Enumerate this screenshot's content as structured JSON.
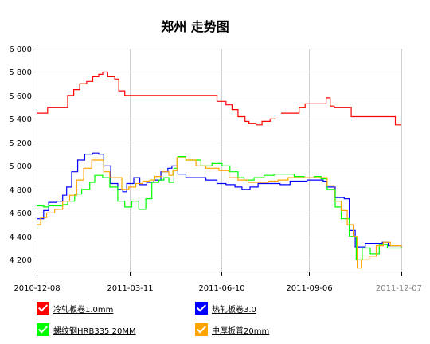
{
  "chart_data": {
    "type": "line",
    "title": "郑州 走势图",
    "ylim": [
      4100,
      6000
    ],
    "y_ticks": [
      "6 000",
      "5 800",
      "5 600",
      "5 400",
      "5 200",
      "5 000",
      "4 800",
      "4 600",
      "4 400",
      "4 200"
    ],
    "y_tick_values": [
      6000,
      5800,
      5600,
      5400,
      5200,
      5000,
      4800,
      4600,
      4400,
      4200
    ],
    "x_range": [
      "2010-12-08",
      "2011-12-07"
    ],
    "x_ticks": [
      "2010-12-08",
      "2011-03-11",
      "2011-06-10",
      "2011-09-06",
      "2011-12-07"
    ],
    "grid": true,
    "legend_placement": "bottom",
    "series": [
      {
        "name": "冷轧板卷1.0mm",
        "color": "#ff0000",
        "points": [
          [
            "2010-12-08",
            5450
          ],
          [
            "2010-12-13",
            5450
          ],
          [
            "2010-12-19",
            5500
          ],
          [
            "2010-12-31",
            5500
          ],
          [
            "2011-01-08",
            5600
          ],
          [
            "2011-01-14",
            5650
          ],
          [
            "2011-01-20",
            5700
          ],
          [
            "2011-01-27",
            5720
          ],
          [
            "2011-02-02",
            5760
          ],
          [
            "2011-02-08",
            5780
          ],
          [
            "2011-02-12",
            5800
          ],
          [
            "2011-02-17",
            5760
          ],
          [
            "2011-02-24",
            5740
          ],
          [
            "2011-02-28",
            5640
          ],
          [
            "2011-03-06",
            5600
          ],
          [
            "2011-06-01",
            5600
          ],
          [
            "2011-06-06",
            5550
          ],
          [
            "2011-06-15",
            5520
          ],
          [
            "2011-06-21",
            5480
          ],
          [
            "2011-06-27",
            5420
          ],
          [
            "2011-07-04",
            5380
          ],
          [
            "2011-07-08",
            5360
          ],
          [
            "2011-07-15",
            5350
          ],
          [
            "2011-07-21",
            5380
          ],
          [
            "2011-07-29",
            5400
          ],
          [
            "2011-08-03",
            5400
          ],
          null,
          [
            "2011-08-09",
            5450
          ],
          [
            "2011-08-21",
            5450
          ],
          [
            "2011-08-27",
            5500
          ],
          [
            "2011-09-02",
            5530
          ],
          [
            "2011-09-20",
            5530
          ],
          [
            "2011-09-23",
            5580
          ],
          [
            "2011-09-27",
            5510
          ],
          [
            "2011-10-01",
            5500
          ],
          [
            "2011-10-15",
            5500
          ],
          [
            "2011-10-18",
            5420
          ],
          [
            "2011-11-27",
            5420
          ],
          [
            "2011-12-01",
            5350
          ],
          [
            "2011-12-07",
            5350
          ]
        ]
      },
      {
        "name": "热轧板卷3.0",
        "color": "#0000ff",
        "points": [
          [
            "2010-12-08",
            4550
          ],
          [
            "2010-12-15",
            4620
          ],
          [
            "2010-12-20",
            4690
          ],
          [
            "2010-12-28",
            4700
          ],
          [
            "2011-01-03",
            4750
          ],
          [
            "2011-01-07",
            4820
          ],
          [
            "2011-01-12",
            4950
          ],
          [
            "2011-01-18",
            5050
          ],
          [
            "2011-01-25",
            5100
          ],
          [
            "2011-02-02",
            5110
          ],
          [
            "2011-02-08",
            5100
          ],
          [
            "2011-02-13",
            5000
          ],
          [
            "2011-02-20",
            4850
          ],
          [
            "2011-02-27",
            4800
          ],
          [
            "2011-03-04",
            4780
          ],
          [
            "2011-03-08",
            4850
          ],
          [
            "2011-03-15",
            4900
          ],
          [
            "2011-03-21",
            4840
          ],
          [
            "2011-03-28",
            4860
          ],
          [
            "2011-04-04",
            4880
          ],
          [
            "2011-04-11",
            4950
          ],
          [
            "2011-04-18",
            4980
          ],
          [
            "2011-04-22",
            5000
          ],
          [
            "2011-04-28",
            4930
          ],
          [
            "2011-05-06",
            4900
          ],
          [
            "2011-05-26",
            4880
          ],
          [
            "2011-06-06",
            4850
          ],
          [
            "2011-06-15",
            4840
          ],
          [
            "2011-06-24",
            4820
          ],
          [
            "2011-07-01",
            4800
          ],
          [
            "2011-07-09",
            4820
          ],
          [
            "2011-07-17",
            4850
          ],
          [
            "2011-07-28",
            4850
          ],
          [
            "2011-08-08",
            4840
          ],
          [
            "2011-08-18",
            4870
          ],
          [
            "2011-09-04",
            4880
          ],
          [
            "2011-09-14",
            4880
          ],
          [
            "2011-09-20",
            4870
          ],
          [
            "2011-09-24",
            4820
          ],
          [
            "2011-10-02",
            4730
          ],
          [
            "2011-10-11",
            4720
          ],
          [
            "2011-10-16",
            4450
          ],
          [
            "2011-10-22",
            4310
          ],
          [
            "2011-11-01",
            4340
          ],
          [
            "2011-11-18",
            4350
          ],
          [
            "2011-11-24",
            4320
          ],
          [
            "2011-12-07",
            4310
          ]
        ]
      },
      {
        "name": "螺纹钢HRB335 20MM",
        "color": "#00ff00",
        "points": [
          [
            "2010-12-08",
            4660
          ],
          [
            "2010-12-15",
            4650
          ],
          [
            "2010-12-20",
            4660
          ],
          [
            "2011-01-03",
            4670
          ],
          [
            "2011-01-08",
            4700
          ],
          [
            "2011-01-15",
            4760
          ],
          [
            "2011-01-22",
            4800
          ],
          [
            "2011-01-30",
            4860
          ],
          [
            "2011-02-04",
            4920
          ],
          [
            "2011-02-12",
            4900
          ],
          [
            "2011-02-19",
            4820
          ],
          [
            "2011-02-27",
            4700
          ],
          [
            "2011-03-06",
            4650
          ],
          [
            "2011-03-13",
            4700
          ],
          [
            "2011-03-20",
            4630
          ],
          [
            "2011-03-27",
            4720
          ],
          [
            "2011-04-02",
            4860
          ],
          [
            "2011-04-09",
            4880
          ],
          [
            "2011-04-14",
            4900
          ],
          [
            "2011-04-19",
            4860
          ],
          [
            "2011-04-24",
            4980
          ],
          [
            "2011-04-28",
            5080
          ],
          [
            "2011-05-06",
            5050
          ],
          [
            "2011-05-21",
            5000
          ],
          [
            "2011-06-01",
            5020
          ],
          [
            "2011-06-11",
            5000
          ],
          [
            "2011-06-19",
            4950
          ],
          [
            "2011-06-27",
            4900
          ],
          [
            "2011-07-03",
            4880
          ],
          [
            "2011-07-13",
            4900
          ],
          [
            "2011-07-23",
            4920
          ],
          [
            "2011-08-02",
            4930
          ],
          [
            "2011-08-12",
            4930
          ],
          [
            "2011-08-22",
            4910
          ],
          [
            "2011-09-01",
            4900
          ],
          [
            "2011-09-11",
            4910
          ],
          [
            "2011-09-18",
            4890
          ],
          [
            "2011-09-24",
            4800
          ],
          [
            "2011-10-02",
            4650
          ],
          [
            "2011-10-08",
            4550
          ],
          [
            "2011-10-16",
            4400
          ],
          [
            "2011-10-23",
            4200
          ],
          [
            "2011-10-29",
            4300
          ],
          [
            "2011-11-06",
            4250
          ],
          [
            "2011-11-15",
            4330
          ],
          [
            "2011-11-23",
            4300
          ],
          [
            "2011-12-07",
            4310
          ]
        ]
      },
      {
        "name": "中厚板普20mm",
        "color": "#ffa500",
        "points": [
          [
            "2010-12-08",
            4500
          ],
          [
            "2010-12-12",
            4560
          ],
          [
            "2010-12-18",
            4600
          ],
          [
            "2010-12-26",
            4630
          ],
          [
            "2011-01-03",
            4700
          ],
          [
            "2011-01-10",
            4750
          ],
          [
            "2011-01-17",
            4880
          ],
          [
            "2011-01-24",
            4980
          ],
          [
            "2011-02-01",
            5050
          ],
          [
            "2011-02-07",
            5050
          ],
          [
            "2011-02-13",
            4950
          ],
          [
            "2011-02-19",
            4900
          ],
          [
            "2011-02-25",
            4900
          ],
          [
            "2011-03-03",
            4800
          ],
          [
            "2011-03-10",
            4820
          ],
          [
            "2011-03-17",
            4850
          ],
          [
            "2011-03-24",
            4870
          ],
          [
            "2011-03-31",
            4880
          ],
          [
            "2011-04-05",
            4910
          ],
          [
            "2011-04-12",
            4950
          ],
          [
            "2011-04-19",
            4920
          ],
          [
            "2011-04-23",
            4960
          ],
          [
            "2011-04-27",
            5070
          ],
          [
            "2011-05-06",
            5050
          ],
          [
            "2011-05-16",
            5000
          ],
          [
            "2011-05-26",
            4980
          ],
          [
            "2011-06-08",
            4960
          ],
          [
            "2011-06-18",
            4900
          ],
          [
            "2011-06-27",
            4880
          ],
          [
            "2011-07-07",
            4860
          ],
          [
            "2011-07-17",
            4860
          ],
          [
            "2011-07-27",
            4870
          ],
          [
            "2011-08-06",
            4880
          ],
          [
            "2011-08-16",
            4900
          ],
          [
            "2011-08-26",
            4900
          ],
          [
            "2011-09-08",
            4900
          ],
          [
            "2011-09-18",
            4900
          ],
          [
            "2011-09-24",
            4830
          ],
          [
            "2011-10-01",
            4700
          ],
          [
            "2011-10-08",
            4620
          ],
          [
            "2011-10-14",
            4500
          ],
          [
            "2011-10-20",
            4400
          ],
          [
            "2011-10-24",
            4130
          ],
          [
            "2011-10-28",
            4200
          ],
          [
            "2011-11-05",
            4230
          ],
          [
            "2011-11-12",
            4320
          ],
          [
            "2011-11-19",
            4350
          ],
          [
            "2011-11-26",
            4320
          ],
          [
            "2011-12-07",
            4310
          ]
        ]
      }
    ]
  }
}
